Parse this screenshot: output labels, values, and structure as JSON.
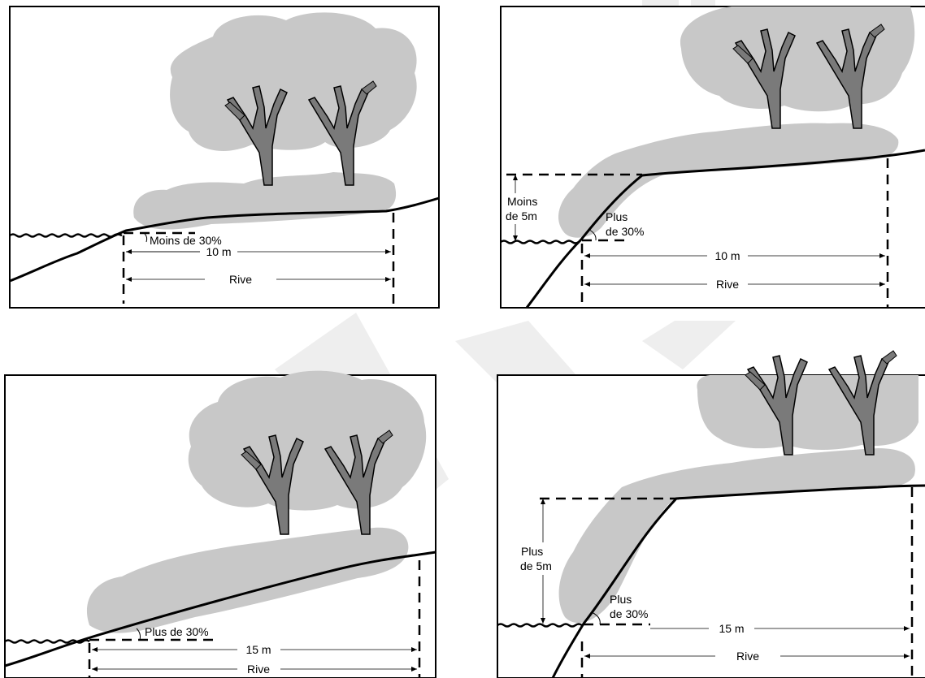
{
  "panels": [
    {
      "id": "p1",
      "slope_label": "Moins de 30%",
      "width_label": "10 m",
      "shore_label": "Rive"
    },
    {
      "id": "p2",
      "height_line1": "Moins",
      "height_line2": "de 5m",
      "slope_line1": "Plus",
      "slope_line2": "de 30%",
      "width_label": "10 m",
      "shore_label": "Rive"
    },
    {
      "id": "p3",
      "slope_label": "Plus de 30%",
      "width_label": "15 m",
      "shore_label": "Rive"
    },
    {
      "id": "p4",
      "height_line1": "Plus",
      "height_line2": "de 5m",
      "slope_line1": "Plus",
      "slope_line2": "de 30%",
      "width_label": "15 m",
      "shore_label": "Rive"
    }
  ],
  "colors": {
    "vegetation": "#c8c8c8",
    "trunk": "#7a7a7a",
    "line": "#000000",
    "watermark": "#eeeeee"
  }
}
